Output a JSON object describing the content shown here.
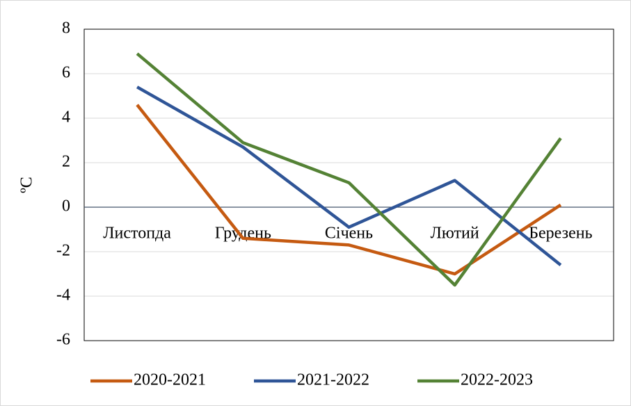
{
  "chart_data": {
    "type": "line",
    "categories": [
      "Листопда",
      "Грудень",
      "Січень",
      "Лютий",
      "Березень"
    ],
    "series": [
      {
        "name": "2020-2021",
        "color": "#c55a11",
        "values": [
          4.6,
          -1.4,
          -1.7,
          -3.0,
          0.1
        ]
      },
      {
        "name": "2021-2022",
        "color": "#2f5597",
        "values": [
          5.4,
          2.7,
          -0.9,
          1.2,
          -2.6
        ]
      },
      {
        "name": "2022-2023",
        "color": "#548235",
        "values": [
          6.9,
          2.9,
          1.1,
          -3.5,
          3.1
        ]
      }
    ],
    "y_label": "ºC",
    "ylim": [
      -6,
      8
    ],
    "yticks": [
      -6,
      -4,
      -2,
      0,
      2,
      4,
      6,
      8
    ],
    "grid": true,
    "legend": "bottom"
  }
}
